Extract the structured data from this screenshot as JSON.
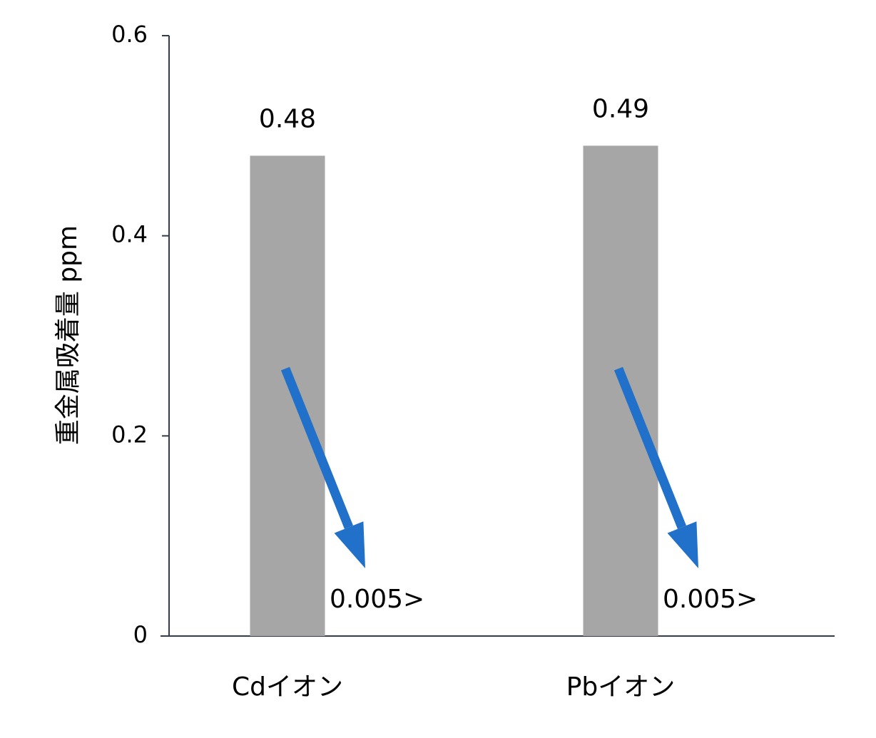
{
  "chart_data": {
    "type": "bar",
    "y_label": "重金属吸着量 ppm",
    "categories": [
      "Cdイオン",
      "Pbイオン"
    ],
    "values": [
      0.48,
      0.49
    ],
    "color": "#a6a6a6",
    "ylim": [
      0,
      0.6
    ],
    "yticks": [
      0,
      0.2,
      0.4,
      0.6
    ],
    "annotations": [
      "0.005>",
      "0.005>"
    ],
    "annotation_arrow_color": "#2170c9"
  }
}
